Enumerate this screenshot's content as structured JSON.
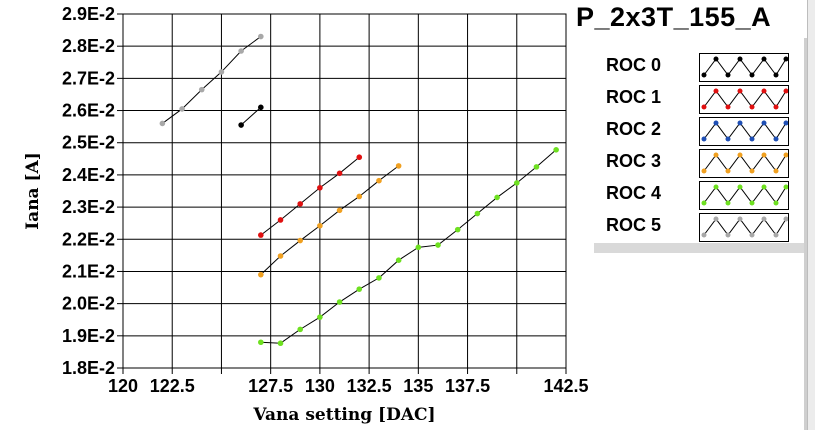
{
  "title": "P_2x3T_155_A",
  "chart_data": {
    "type": "line",
    "xlabel": "Vana setting [DAC]",
    "ylabel": "Iana [A]",
    "xlim": [
      120,
      142.5
    ],
    "ylim": [
      0.018,
      0.029
    ],
    "x_ticks": [
      120,
      122.5,
      125,
      127.5,
      130,
      132.5,
      135,
      137.5,
      140,
      142.5
    ],
    "x_tick_labels": [
      "120",
      "122.5",
      "",
      "127.5",
      "130",
      "132.5",
      "135",
      "137.5",
      "",
      "142.5"
    ],
    "y_ticks": [
      0.018,
      0.019,
      0.02,
      0.021,
      0.022,
      0.023,
      0.024,
      0.025,
      0.026,
      0.027,
      0.028,
      0.029
    ],
    "y_tick_labels": [
      "1.8E-2",
      "1.9E-2",
      "2.0E-2",
      "2.1E-2",
      "2.2E-2",
      "2.3E-2",
      "2.4E-2",
      "2.5E-2",
      "2.6E-2",
      "2.7E-2",
      "2.8E-2",
      "2.9E-2"
    ],
    "grid": true,
    "legend_placement": "right",
    "series": [
      {
        "name": "ROC 0",
        "color": "#000000",
        "x": [
          126,
          127
        ],
        "y": [
          0.02555,
          0.0261
        ]
      },
      {
        "name": "ROC 1",
        "color": "#e01010",
        "x": [
          127,
          128,
          129,
          130,
          131,
          132
        ],
        "y": [
          0.02213,
          0.0226,
          0.0231,
          0.0236,
          0.02405,
          0.02455
        ]
      },
      {
        "name": "ROC 2",
        "color": "#1f4fb4",
        "x": [],
        "y": []
      },
      {
        "name": "ROC 3",
        "color": "#f0a020",
        "x": [
          127,
          128,
          129,
          130,
          131,
          132,
          133,
          134
        ],
        "y": [
          0.0209,
          0.02148,
          0.02196,
          0.02242,
          0.0229,
          0.02333,
          0.02382,
          0.02428
        ]
      },
      {
        "name": "ROC 4",
        "color": "#6ee020",
        "x": [
          127,
          128,
          129,
          130,
          131,
          132,
          133,
          134,
          135,
          136,
          137,
          138,
          139,
          140,
          141,
          142
        ],
        "y": [
          0.0188,
          0.01877,
          0.0192,
          0.01958,
          0.02005,
          0.02045,
          0.0208,
          0.02135,
          0.02175,
          0.02182,
          0.0223,
          0.0228,
          0.0233,
          0.02375,
          0.02425,
          0.02478
        ]
      },
      {
        "name": "ROC 5",
        "color": "#a8a8a8",
        "x": [
          122,
          123,
          124,
          125,
          126,
          127
        ],
        "y": [
          0.0256,
          0.02605,
          0.02665,
          0.0272,
          0.02785,
          0.0283
        ]
      }
    ]
  },
  "legend": [
    {
      "label": "ROC 0",
      "color": "#000000"
    },
    {
      "label": "ROC 1",
      "color": "#e01010"
    },
    {
      "label": "ROC 2",
      "color": "#1f4fb4"
    },
    {
      "label": "ROC 3",
      "color": "#f0a020"
    },
    {
      "label": "ROC 4",
      "color": "#6ee020"
    },
    {
      "label": "ROC 5",
      "color": "#a8a8a8"
    }
  ]
}
